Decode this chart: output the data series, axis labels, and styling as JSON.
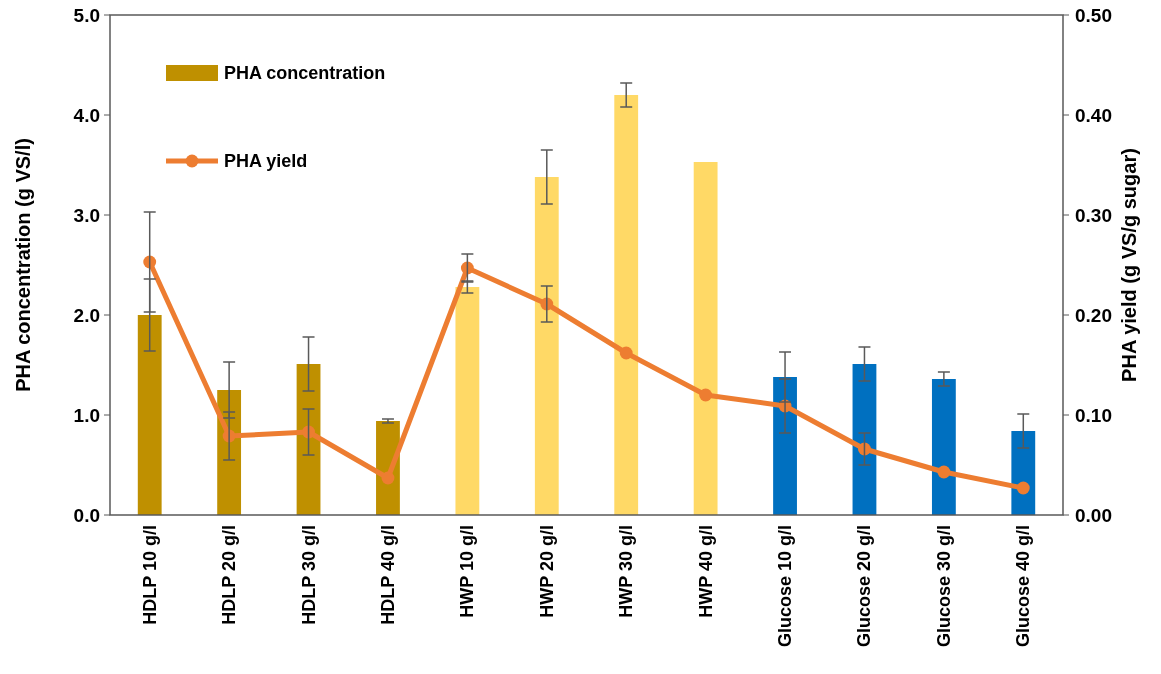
{
  "chart_data": {
    "type": "bar",
    "categories": [
      "HDLP 10 g/l",
      "HDLP 20 g/l",
      "HDLP 30 g/l",
      "HDLP 40 g/l",
      "HWP 10 g/l",
      "HWP 20 g/l",
      "HWP 30 g/l",
      "HWP 40 g/l",
      "Glucose 10 g/l",
      "Glucose 20 g/l",
      "Glucose 30 g/l",
      "Glucose 40 g/l"
    ],
    "series": [
      {
        "name": "PHA concentration",
        "color": "#bf9000",
        "colors": [
          "#bf9000",
          "#bf9000",
          "#bf9000",
          "#bf9000",
          "#ffd966",
          "#ffd966",
          "#ffd966",
          "#ffd966",
          "#0070c0",
          "#0070c0",
          "#0070c0",
          "#0070c0"
        ],
        "values": [
          2.0,
          1.25,
          1.51,
          0.94,
          2.28,
          3.38,
          4.2,
          3.53,
          1.38,
          1.51,
          1.36,
          0.84
        ],
        "errors": [
          0.36,
          0.28,
          0.27,
          0.02,
          0.06,
          0.27,
          0.12,
          null,
          0.25,
          0.17,
          0.07,
          0.17
        ]
      },
      {
        "name": "PHA yield",
        "type": "line",
        "axis": "y2",
        "color": "#ed7d31",
        "values": [
          0.253,
          0.079,
          0.083,
          0.037,
          0.247,
          0.211,
          0.162,
          0.12,
          0.109,
          0.066,
          0.043,
          0.027
        ],
        "errors": [
          0.05,
          0.024,
          0.023,
          null,
          0.014,
          0.018,
          null,
          null,
          0.027,
          0.016,
          null,
          null
        ]
      }
    ],
    "ylabel": "PHA concentration (g VS/l)",
    "y2label": "PHA yield (g VS/g sugar)",
    "ylim": [
      0,
      5
    ],
    "yticks": [
      {
        "value": 0,
        "label": "0.0"
      },
      {
        "value": 1,
        "label": "1.0"
      },
      {
        "value": 2,
        "label": "2.0"
      },
      {
        "value": 3,
        "label": "3.0"
      },
      {
        "value": 4,
        "label": "4.0"
      },
      {
        "value": 5,
        "label": "5.0"
      }
    ],
    "y2lim": [
      0,
      0.5
    ],
    "y2ticks": [
      {
        "value": 0,
        "label": "0.00"
      },
      {
        "value": 0.1,
        "label": "0.10"
      },
      {
        "value": 0.2,
        "label": "0.20"
      },
      {
        "value": 0.3,
        "label": "0.30"
      },
      {
        "value": 0.4,
        "label": "0.40"
      },
      {
        "value": 0.5,
        "label": "0.50"
      }
    ],
    "legend": "top left",
    "marker": "circle",
    "grid": false
  }
}
